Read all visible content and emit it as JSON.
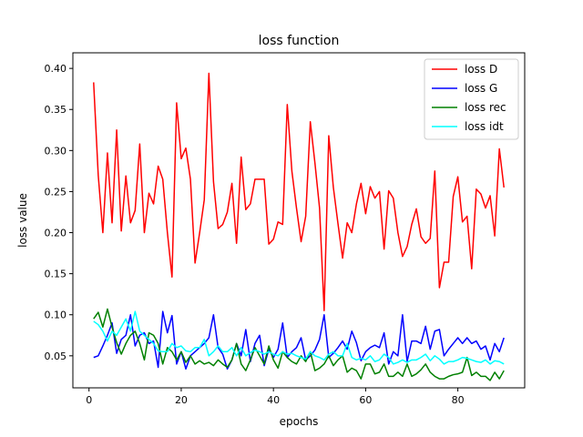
{
  "chart_data": {
    "type": "line",
    "title": "loss function",
    "xlabel": "epochs",
    "ylabel": "loss value",
    "xlim": [
      -3.5,
      94.5
    ],
    "ylim": [
      0.011,
      0.419
    ],
    "xticks": [
      0,
      20,
      40,
      60,
      80
    ],
    "xtick_labels": [
      "0",
      "20",
      "40",
      "60",
      "80"
    ],
    "yticks": [
      0.05,
      0.1,
      0.15,
      0.2,
      0.25,
      0.3,
      0.35,
      0.4
    ],
    "ytick_labels": [
      "0.05",
      "0.10",
      "0.15",
      "0.20",
      "0.25",
      "0.30",
      "0.35",
      "0.40"
    ],
    "grid": false,
    "legend_position": "top-right",
    "x_start": 1,
    "series": [
      {
        "name": "loss D",
        "color": "#ff0000",
        "values": [
          0.383,
          0.27,
          0.2,
          0.297,
          0.212,
          0.325,
          0.202,
          0.269,
          0.212,
          0.227,
          0.308,
          0.2,
          0.248,
          0.235,
          0.281,
          0.265,
          0.2,
          0.146,
          0.358,
          0.29,
          0.303,
          0.265,
          0.163,
          0.2,
          0.24,
          0.394,
          0.262,
          0.205,
          0.21,
          0.225,
          0.26,
          0.187,
          0.292,
          0.228,
          0.235,
          0.265,
          0.265,
          0.265,
          0.186,
          0.192,
          0.213,
          0.21,
          0.356,
          0.275,
          0.23,
          0.189,
          0.22,
          0.335,
          0.285,
          0.23,
          0.105,
          0.318,
          0.255,
          0.211,
          0.169,
          0.212,
          0.2,
          0.235,
          0.26,
          0.223,
          0.256,
          0.242,
          0.25,
          0.18,
          0.251,
          0.242,
          0.2,
          0.171,
          0.183,
          0.21,
          0.229,
          0.195,
          0.187,
          0.193,
          0.275,
          0.133,
          0.164,
          0.164,
          0.244,
          0.268,
          0.213,
          0.22,
          0.156,
          0.253,
          0.247,
          0.23,
          0.245,
          0.196,
          0.302,
          0.255
        ]
      },
      {
        "name": "loss G",
        "color": "#0000ff",
        "values": [
          0.048,
          0.05,
          0.062,
          0.075,
          0.09,
          0.053,
          0.07,
          0.075,
          0.1,
          0.062,
          0.075,
          0.078,
          0.065,
          0.068,
          0.036,
          0.104,
          0.078,
          0.099,
          0.04,
          0.055,
          0.034,
          0.05,
          0.055,
          0.06,
          0.065,
          0.072,
          0.1,
          0.06,
          0.052,
          0.034,
          0.045,
          0.065,
          0.05,
          0.082,
          0.043,
          0.065,
          0.075,
          0.038,
          0.058,
          0.048,
          0.058,
          0.09,
          0.048,
          0.055,
          0.06,
          0.072,
          0.045,
          0.05,
          0.057,
          0.07,
          0.1,
          0.048,
          0.053,
          0.06,
          0.068,
          0.058,
          0.08,
          0.066,
          0.044,
          0.055,
          0.06,
          0.063,
          0.06,
          0.078,
          0.04,
          0.055,
          0.05,
          0.1,
          0.043,
          0.068,
          0.068,
          0.065,
          0.086,
          0.058,
          0.08,
          0.082,
          0.05,
          0.058,
          0.065,
          0.072,
          0.065,
          0.072,
          0.065,
          0.068,
          0.058,
          0.062,
          0.045,
          0.065,
          0.055,
          0.072
        ]
      },
      {
        "name": "loss rec",
        "color": "#008000",
        "values": [
          0.095,
          0.103,
          0.085,
          0.107,
          0.085,
          0.066,
          0.052,
          0.065,
          0.075,
          0.08,
          0.065,
          0.045,
          0.078,
          0.075,
          0.065,
          0.04,
          0.06,
          0.055,
          0.045,
          0.055,
          0.042,
          0.05,
          0.04,
          0.044,
          0.04,
          0.042,
          0.038,
          0.045,
          0.04,
          0.036,
          0.045,
          0.065,
          0.04,
          0.032,
          0.045,
          0.06,
          0.05,
          0.04,
          0.062,
          0.045,
          0.035,
          0.055,
          0.048,
          0.043,
          0.04,
          0.05,
          0.043,
          0.055,
          0.032,
          0.035,
          0.04,
          0.05,
          0.038,
          0.045,
          0.05,
          0.03,
          0.035,
          0.032,
          0.022,
          0.04,
          0.04,
          0.028,
          0.03,
          0.04,
          0.025,
          0.025,
          0.03,
          0.025,
          0.04,
          0.025,
          0.028,
          0.033,
          0.04,
          0.03,
          0.025,
          0.022,
          0.022,
          0.025,
          0.027,
          0.028,
          0.03,
          0.048,
          0.026,
          0.03,
          0.025,
          0.025,
          0.02,
          0.03,
          0.022,
          0.032
        ]
      },
      {
        "name": "loss idt",
        "color": "#00ffff",
        "values": [
          0.092,
          0.088,
          0.08,
          0.068,
          0.08,
          0.075,
          0.085,
          0.095,
          0.08,
          0.104,
          0.08,
          0.075,
          0.07,
          0.065,
          0.056,
          0.055,
          0.055,
          0.065,
          0.06,
          0.062,
          0.056,
          0.055,
          0.06,
          0.06,
          0.07,
          0.05,
          0.055,
          0.062,
          0.055,
          0.055,
          0.06,
          0.05,
          0.06,
          0.05,
          0.054,
          0.057,
          0.055,
          0.052,
          0.055,
          0.052,
          0.05,
          0.055,
          0.052,
          0.053,
          0.05,
          0.048,
          0.046,
          0.055,
          0.05,
          0.048,
          0.045,
          0.052,
          0.055,
          0.05,
          0.05,
          0.065,
          0.048,
          0.045,
          0.047,
          0.045,
          0.05,
          0.043,
          0.045,
          0.052,
          0.048,
          0.04,
          0.042,
          0.045,
          0.042,
          0.045,
          0.045,
          0.048,
          0.052,
          0.044,
          0.05,
          0.046,
          0.04,
          0.043,
          0.043,
          0.045,
          0.048,
          0.047,
          0.045,
          0.043,
          0.042,
          0.045,
          0.04,
          0.044,
          0.043,
          0.04
        ]
      }
    ]
  }
}
